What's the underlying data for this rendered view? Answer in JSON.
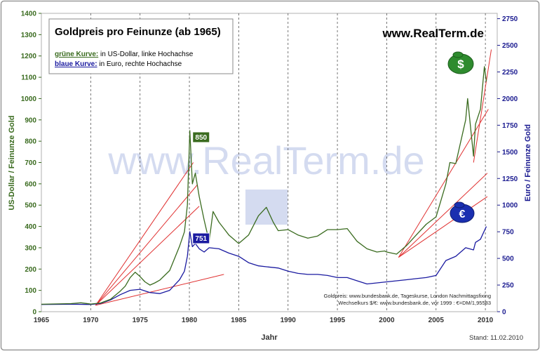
{
  "chart_data": {
    "type": "line",
    "title": "Goldpreis pro Feinunze (ab 1965)",
    "subtitle_lines": [
      {
        "key": "grüne Kurve:",
        "text": " in US-Dollar, linke Hochachse"
      },
      {
        "key": "blaue Kurve:",
        "text": " in Euro, rechte Hochachse"
      }
    ],
    "brand": "www.RealTerm.de",
    "watermark": "www.RealTerm.de",
    "xlabel": "Jahr",
    "ylabel_left": "US-Dollar / Feinunze Gold",
    "ylabel_right": "Euro / Feinunze Gold",
    "xlim": [
      1965,
      2011.2
    ],
    "ylim_left": [
      0,
      1400
    ],
    "ylim_right": [
      0,
      2800
    ],
    "x_ticks": [
      1965,
      1970,
      1975,
      1980,
      1985,
      1990,
      1995,
      2000,
      2005,
      2010
    ],
    "y_ticks_left": [
      0,
      100,
      200,
      300,
      400,
      500,
      600,
      700,
      800,
      900,
      1000,
      1100,
      1200,
      1300,
      1400
    ],
    "y_ticks_right": [
      0,
      250,
      500,
      750,
      1000,
      1250,
      1500,
      1750,
      2000,
      2250,
      2500,
      2750
    ],
    "grid": "vertical dashed lines at x ticks",
    "colors": {
      "usd": "#3a6b1f",
      "eur": "#1a1aa0",
      "trend": "#e03030",
      "axis_left": "#3a6b1f",
      "axis_right": "#1a1a90",
      "frame": "#888888"
    },
    "series": [
      {
        "name": "grüne Kurve",
        "axis": "left",
        "x": [
          1965,
          1968,
          1969,
          1970,
          1971,
          1972,
          1973,
          1973.5,
          1974,
          1974.5,
          1975,
          1975.5,
          1976,
          1976.5,
          1977,
          1978,
          1979,
          1979.5,
          1979.8,
          1980.05,
          1980.3,
          1980.6,
          1981,
          1981.5,
          1982,
          1982.4,
          1983,
          1983.5,
          1984,
          1985,
          1986,
          1987,
          1987.8,
          1988.5,
          1989,
          1990,
          1991,
          1992,
          1993,
          1994,
          1995,
          1996,
          1997,
          1998,
          1999,
          1999.8,
          2000,
          2001,
          2002,
          2003,
          2004,
          2005,
          2006,
          2006.4,
          2007,
          2008,
          2008.2,
          2008.8,
          2009,
          2009.5,
          2009.9,
          2010.1
        ],
        "values": [
          35,
          38,
          42,
          36,
          41,
          58,
          97,
          120,
          160,
          185,
          165,
          140,
          125,
          135,
          148,
          193,
          307,
          375,
          500,
          850,
          600,
          650,
          540,
          430,
          330,
          470,
          420,
          390,
          360,
          320,
          360,
          450,
          490,
          420,
          380,
          385,
          360,
          345,
          355,
          385,
          385,
          390,
          330,
          295,
          280,
          285,
          280,
          270,
          310,
          360,
          410,
          445,
          600,
          700,
          695,
          900,
          1000,
          730,
          880,
          950,
          1150,
          1080
        ]
      },
      {
        "name": "blaue Kurve",
        "axis": "right",
        "x": [
          1965,
          1968,
          1970,
          1971,
          1972,
          1973,
          1974,
          1975,
          1976,
          1977,
          1978,
          1979,
          1979.5,
          1979.8,
          1980.05,
          1980.3,
          1980.6,
          1981,
          1981.5,
          1982,
          1983,
          1984,
          1985,
          1986,
          1987,
          1988,
          1989,
          1990,
          1991,
          1992,
          1993,
          1994,
          1995,
          1996,
          1997,
          1998,
          1999,
          2000,
          2001,
          2002,
          2003,
          2004,
          2005,
          2006,
          2007,
          2008,
          2008.8,
          2009,
          2009.5,
          2009.9,
          2010.1
        ],
        "values": [
          68,
          70,
          68,
          78,
          110,
          160,
          200,
          210,
          180,
          170,
          200,
          300,
          380,
          520,
          751,
          610,
          640,
          590,
          560,
          600,
          590,
          550,
          520,
          460,
          430,
          420,
          410,
          380,
          360,
          350,
          350,
          340,
          320,
          320,
          290,
          260,
          270,
          280,
          290,
          300,
          310,
          320,
          340,
          480,
          520,
          600,
          580,
          650,
          680,
          760,
          800
        ]
      }
    ],
    "annotations": [
      {
        "text": "850",
        "x": 1980.05,
        "value": 850,
        "axis": "left"
      },
      {
        "text": "751",
        "x": 1980.05,
        "value": 751,
        "axis": "right"
      }
    ],
    "trend_lines": [
      {
        "x": [
          1970.5,
          1983.5
        ],
        "values": [
          30,
          175
        ]
      },
      {
        "x": [
          1970.5,
          1981
        ],
        "values": [
          30,
          495
        ]
      },
      {
        "x": [
          1970.5,
          1980.8
        ],
        "values": [
          30,
          595
        ]
      },
      {
        "x": [
          1970.5,
          1980.4
        ],
        "values": [
          30,
          700
        ]
      },
      {
        "x": [
          2001.2,
          2010.2
        ],
        "values": [
          255,
          540
        ]
      },
      {
        "x": [
          2001.2,
          2010.2
        ],
        "values": [
          255,
          650
        ]
      },
      {
        "x": [
          2001.2,
          2010.3
        ],
        "values": [
          255,
          950
        ]
      },
      {
        "x": [
          2008.8,
          2010.6
        ],
        "values": [
          700,
          1230
        ]
      }
    ],
    "source_lines": [
      "Goldpreis: www.bundesbank.de, Tageskurse, London Nachmittagsfixing",
      "Wechselkurs $/€: www.bundesbank.de, vor 1999 : €=DM/1,95583"
    ],
    "stand": "Stand: 11.02.2010",
    "icons": [
      "dollar-bag-icon",
      "euro-bag-icon"
    ]
  }
}
